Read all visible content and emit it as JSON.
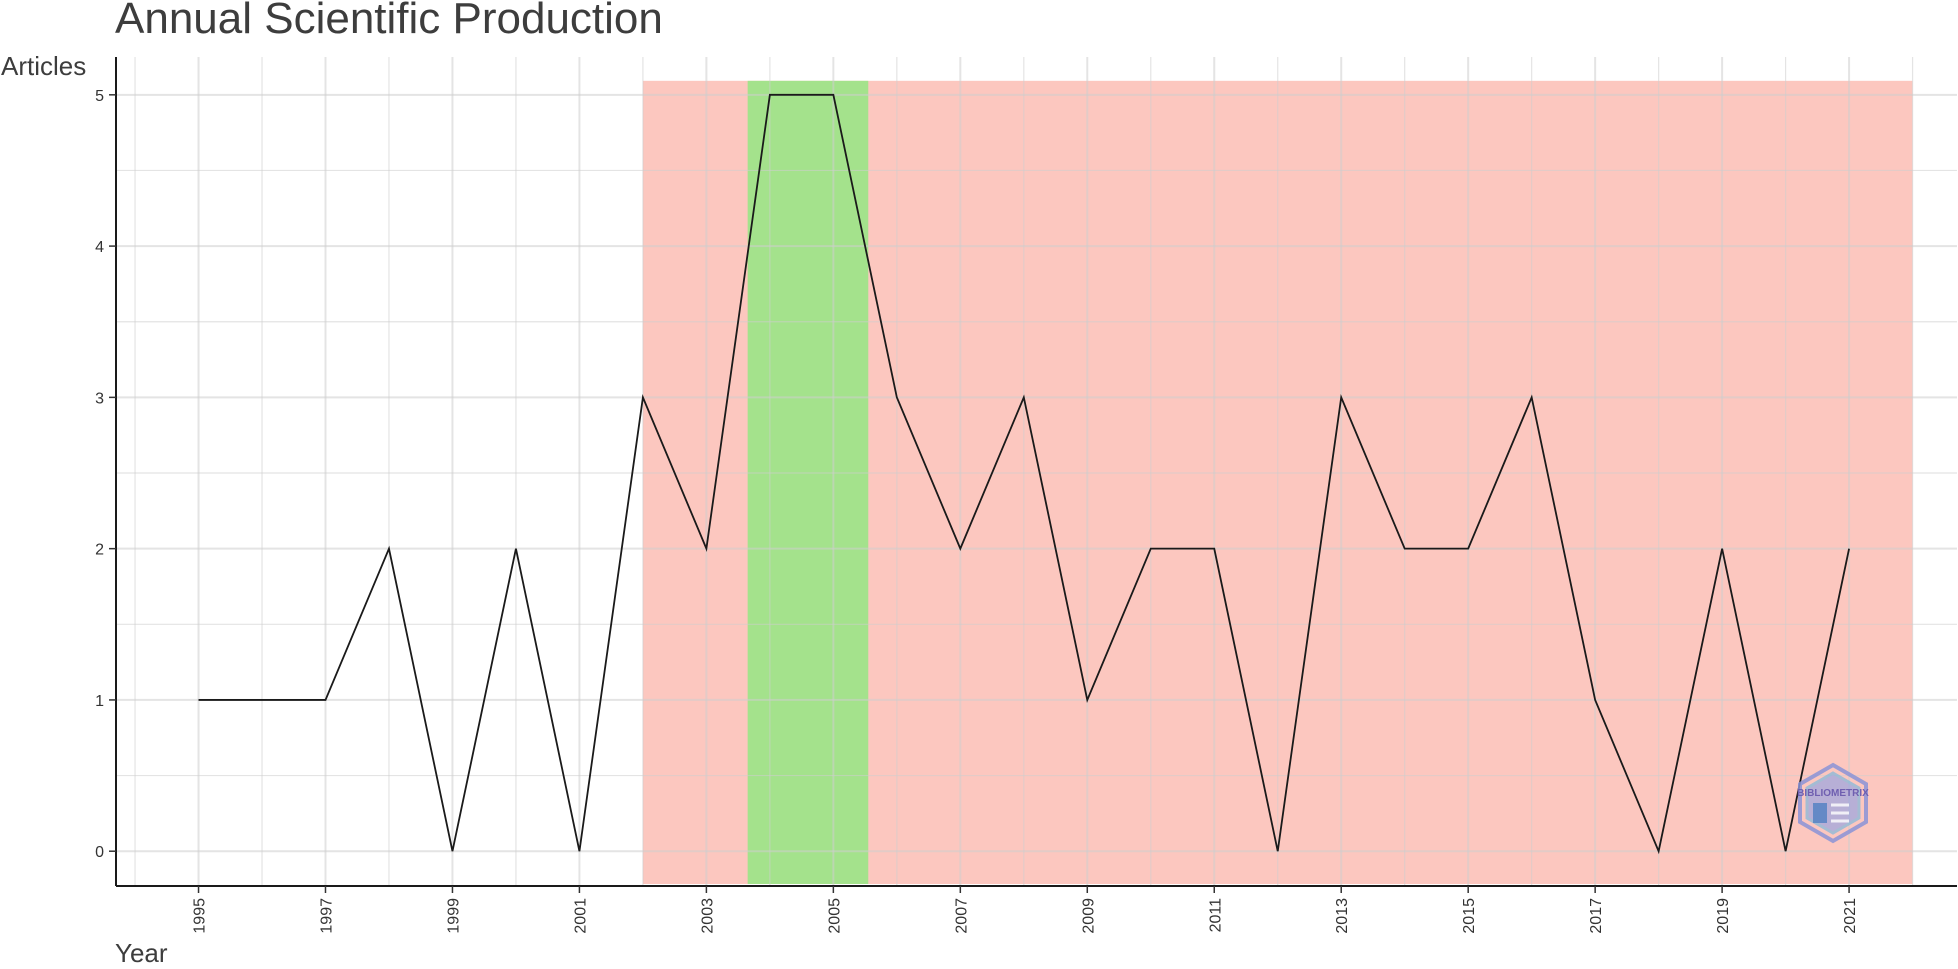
{
  "chart_data": {
    "type": "line",
    "title": "Annual Scientific Production",
    "xlabel": "Year",
    "ylabel": "Articles",
    "x": [
      1995,
      1996,
      1997,
      1998,
      1999,
      2000,
      2001,
      2002,
      2003,
      2004,
      2005,
      2006,
      2007,
      2008,
      2009,
      2010,
      2011,
      2012,
      2013,
      2014,
      2015,
      2016,
      2017,
      2018,
      2019,
      2020,
      2021
    ],
    "series": [
      {
        "values": [
          1,
          1,
          1,
          2,
          0,
          2,
          0,
          3,
          2,
          5,
          5,
          3,
          2,
          3,
          1,
          2,
          2,
          0,
          3,
          2,
          2,
          3,
          1,
          0,
          2,
          0,
          2
        ]
      }
    ],
    "xticks": [
      "1995",
      "1997",
      "1999",
      "2001",
      "2003",
      "2005",
      "2007",
      "2009",
      "2011",
      "2013",
      "2015",
      "2017",
      "2019",
      "2021"
    ],
    "yticks": [
      "0",
      "1",
      "2",
      "3",
      "4",
      "5"
    ],
    "xlim": [
      1993.7,
      2022.7
    ],
    "ylim": [
      -0.23,
      5.25
    ],
    "grid": true,
    "highlight_bands": [
      {
        "x_range": [
          2002,
          2022
        ],
        "color": "#fcc7bf"
      },
      {
        "x_range": [
          2003.65,
          2005.55
        ],
        "color": "#a4e28c"
      }
    ],
    "line_color": "#1a1a1a",
    "watermark": "BIBLIOMETRIX"
  }
}
